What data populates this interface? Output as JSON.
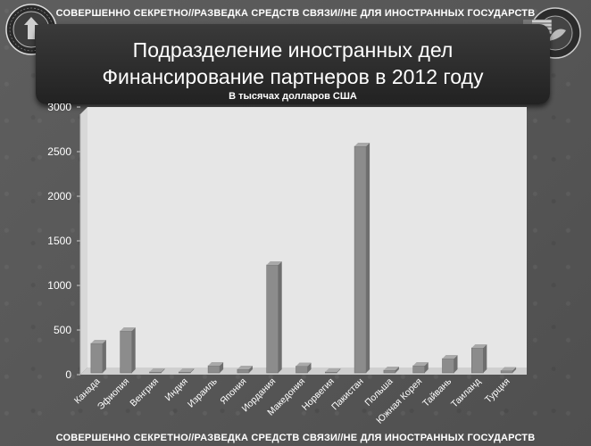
{
  "header": {
    "classification": "СОВЕРШЕННО СЕКРЕТНО//РАЗВЕДКА СРЕДСТВ СВЯЗИ//НЕ ДЛЯ ИНОСТРАННЫХ ГОСУДАРСТВ",
    "title_line1": "Подразделение иностранных дел",
    "title_line2": "Финансирование партнеров в 2012 году",
    "subtitle": "В тысячах долларов США"
  },
  "footer": {
    "classification": "СОВЕРШЕННО СЕКРЕТНО//РАЗВЕДКА СРЕДСТВ СВЯЗИ//НЕ ДЛЯ ИНОСТРАННЫХ ГОСУДАРСТВ"
  },
  "icons": {
    "left_seal": "nsa-seal-icon",
    "right_seal": "css-seal-icon"
  },
  "colors": {
    "bar": "#8c8c8c",
    "plot_bg": "#e6e6e6",
    "floor": "#cfcfcf"
  },
  "chart_data": {
    "type": "bar",
    "title": "Подразделение иностранных дел Финансирование партнеров в 2012 году",
    "subtitle": "В тысячах долларов США",
    "xlabel": "",
    "ylabel": "",
    "ylim": [
      0,
      3000
    ],
    "yticks": [
      0,
      500,
      1000,
      1500,
      2000,
      2500,
      3000
    ],
    "grid": false,
    "categories": [
      "Канада",
      "Эфиопия",
      "Венгрия",
      "Индия",
      "Израиль",
      "Япония",
      "Иордания",
      "Македония",
      "Норвегия",
      "Пакистан",
      "Польша",
      "Южная Корея",
      "Тайвань",
      "Таиланд",
      "Турция"
    ],
    "values": [
      350,
      490,
      5,
      5,
      100,
      60,
      1230,
      95,
      15,
      2560,
      50,
      100,
      180,
      300,
      45
    ]
  }
}
